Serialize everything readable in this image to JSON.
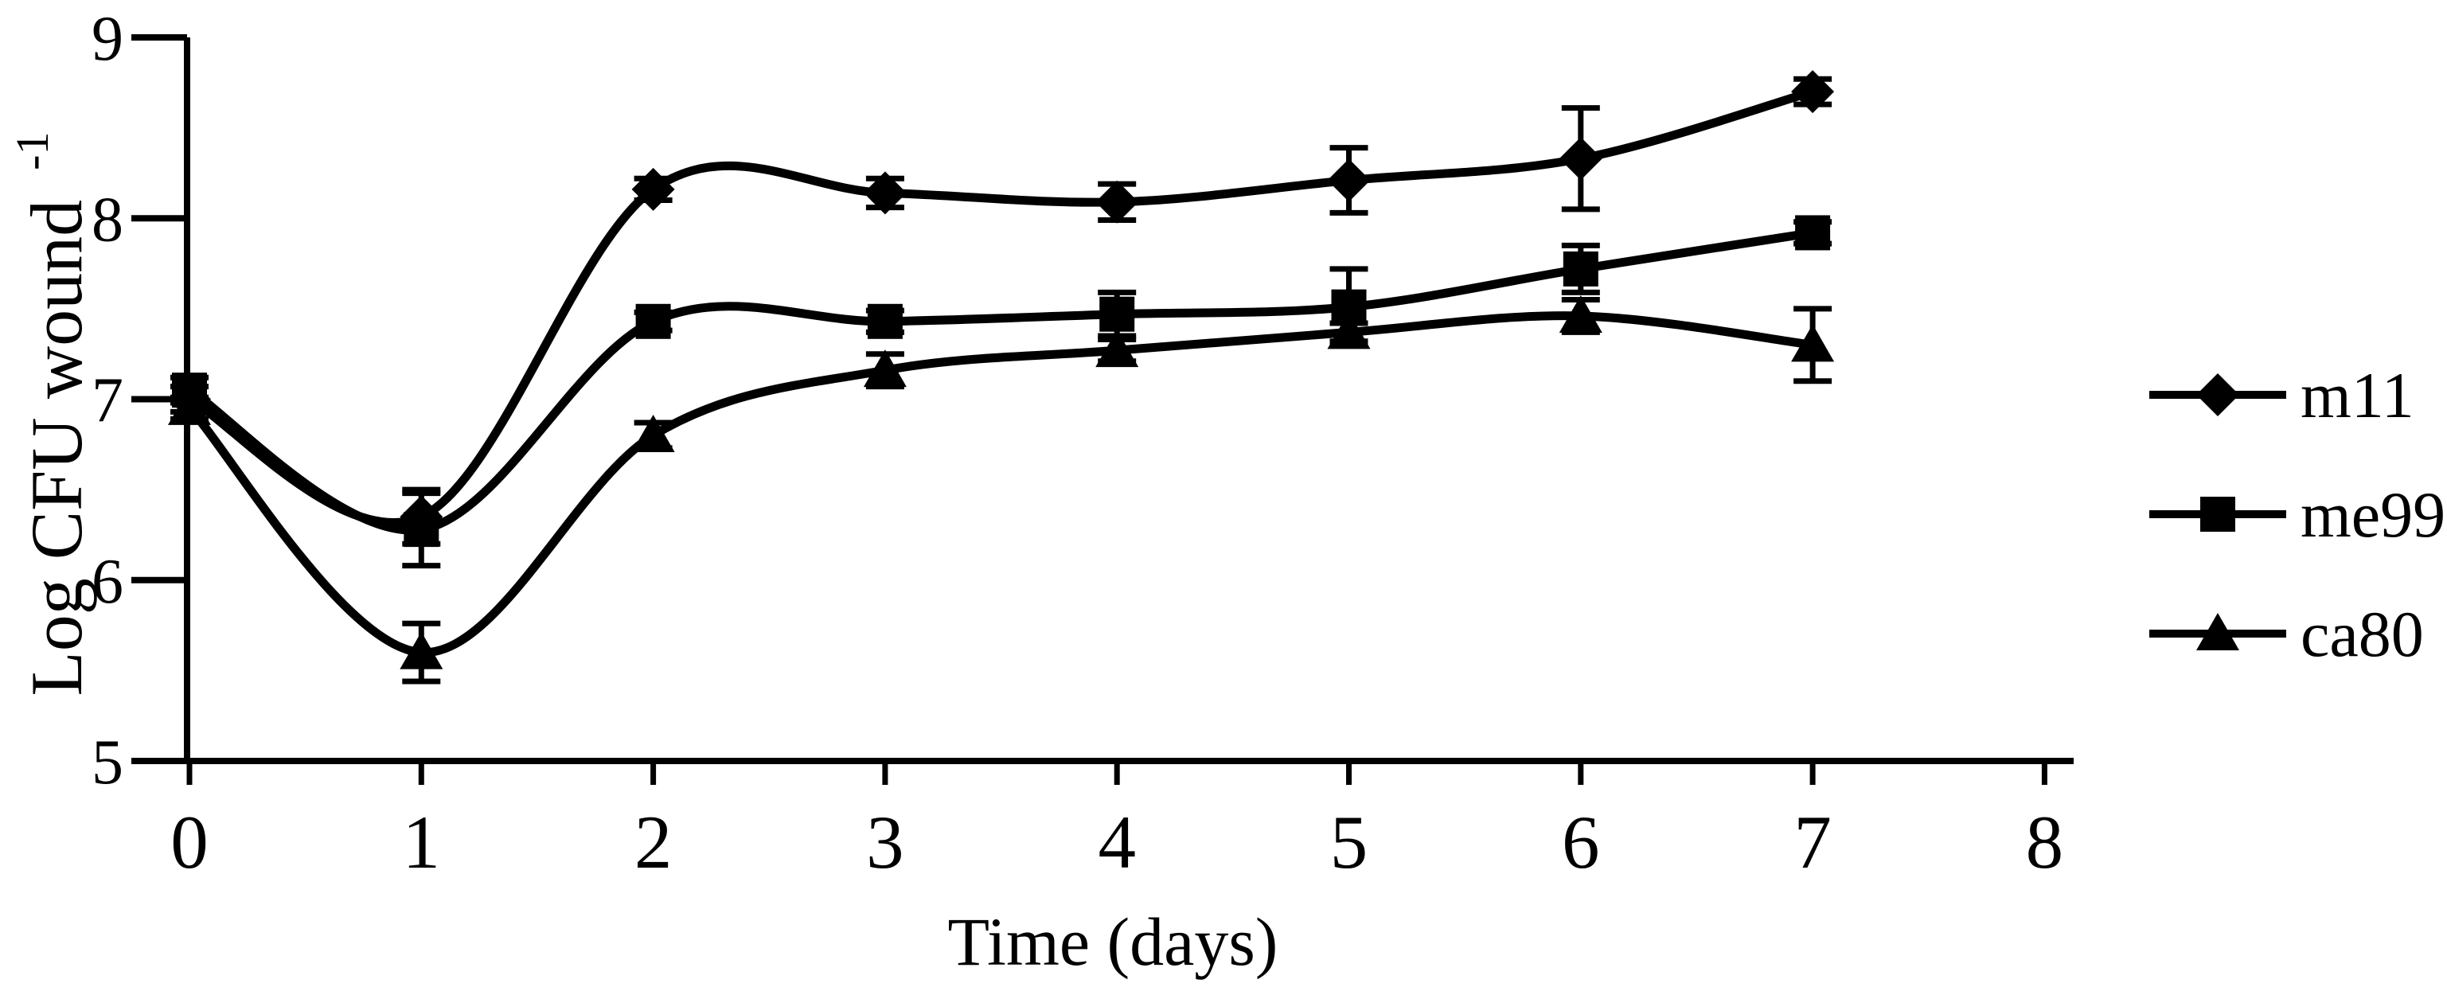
{
  "figure": {
    "background_color": "#ffffff",
    "line_color": "#000000"
  },
  "chart_data": {
    "type": "line",
    "title": "",
    "xlabel": "Time (days)",
    "ylabel": "Log CFU wound",
    "ylabel_superscript": "-1",
    "xlim": [
      0,
      8
    ],
    "ylim": [
      5,
      9
    ],
    "x_ticks": [
      0,
      1,
      2,
      3,
      4,
      5,
      6,
      7,
      8
    ],
    "y_ticks": [
      5,
      6,
      7,
      8,
      9
    ],
    "grid": false,
    "legend_position": "right-center",
    "curve_style": "smoothed",
    "error_bars": true,
    "x": [
      0,
      1,
      2,
      3,
      4,
      5,
      6,
      7
    ],
    "series": [
      {
        "name": "m11",
        "marker": "diamond",
        "values": [
          7.0,
          6.35,
          8.16,
          8.14,
          8.09,
          8.21,
          8.33,
          8.7
        ],
        "errors": [
          0.07,
          0.15,
          0.06,
          0.08,
          0.1,
          0.18,
          0.28,
          0.07
        ]
      },
      {
        "name": "me99",
        "marker": "square",
        "values": [
          7.05,
          6.28,
          7.43,
          7.43,
          7.47,
          7.51,
          7.72,
          7.92
        ],
        "errors": [
          0.07,
          0.2,
          0.05,
          0.06,
          0.12,
          0.21,
          0.13,
          0.06
        ]
      },
      {
        "name": "ca80",
        "marker": "triangle",
        "values": [
          6.95,
          5.6,
          6.8,
          7.16,
          7.27,
          7.37,
          7.46,
          7.3
        ],
        "errors": [
          0.06,
          0.16,
          0.07,
          0.09,
          0.06,
          0.05,
          0.09,
          0.2
        ]
      }
    ]
  },
  "legend": {
    "items": [
      {
        "label": "m11",
        "marker": "diamond"
      },
      {
        "label": "me99",
        "marker": "square"
      },
      {
        "label": "ca80",
        "marker": "triangle"
      }
    ]
  }
}
